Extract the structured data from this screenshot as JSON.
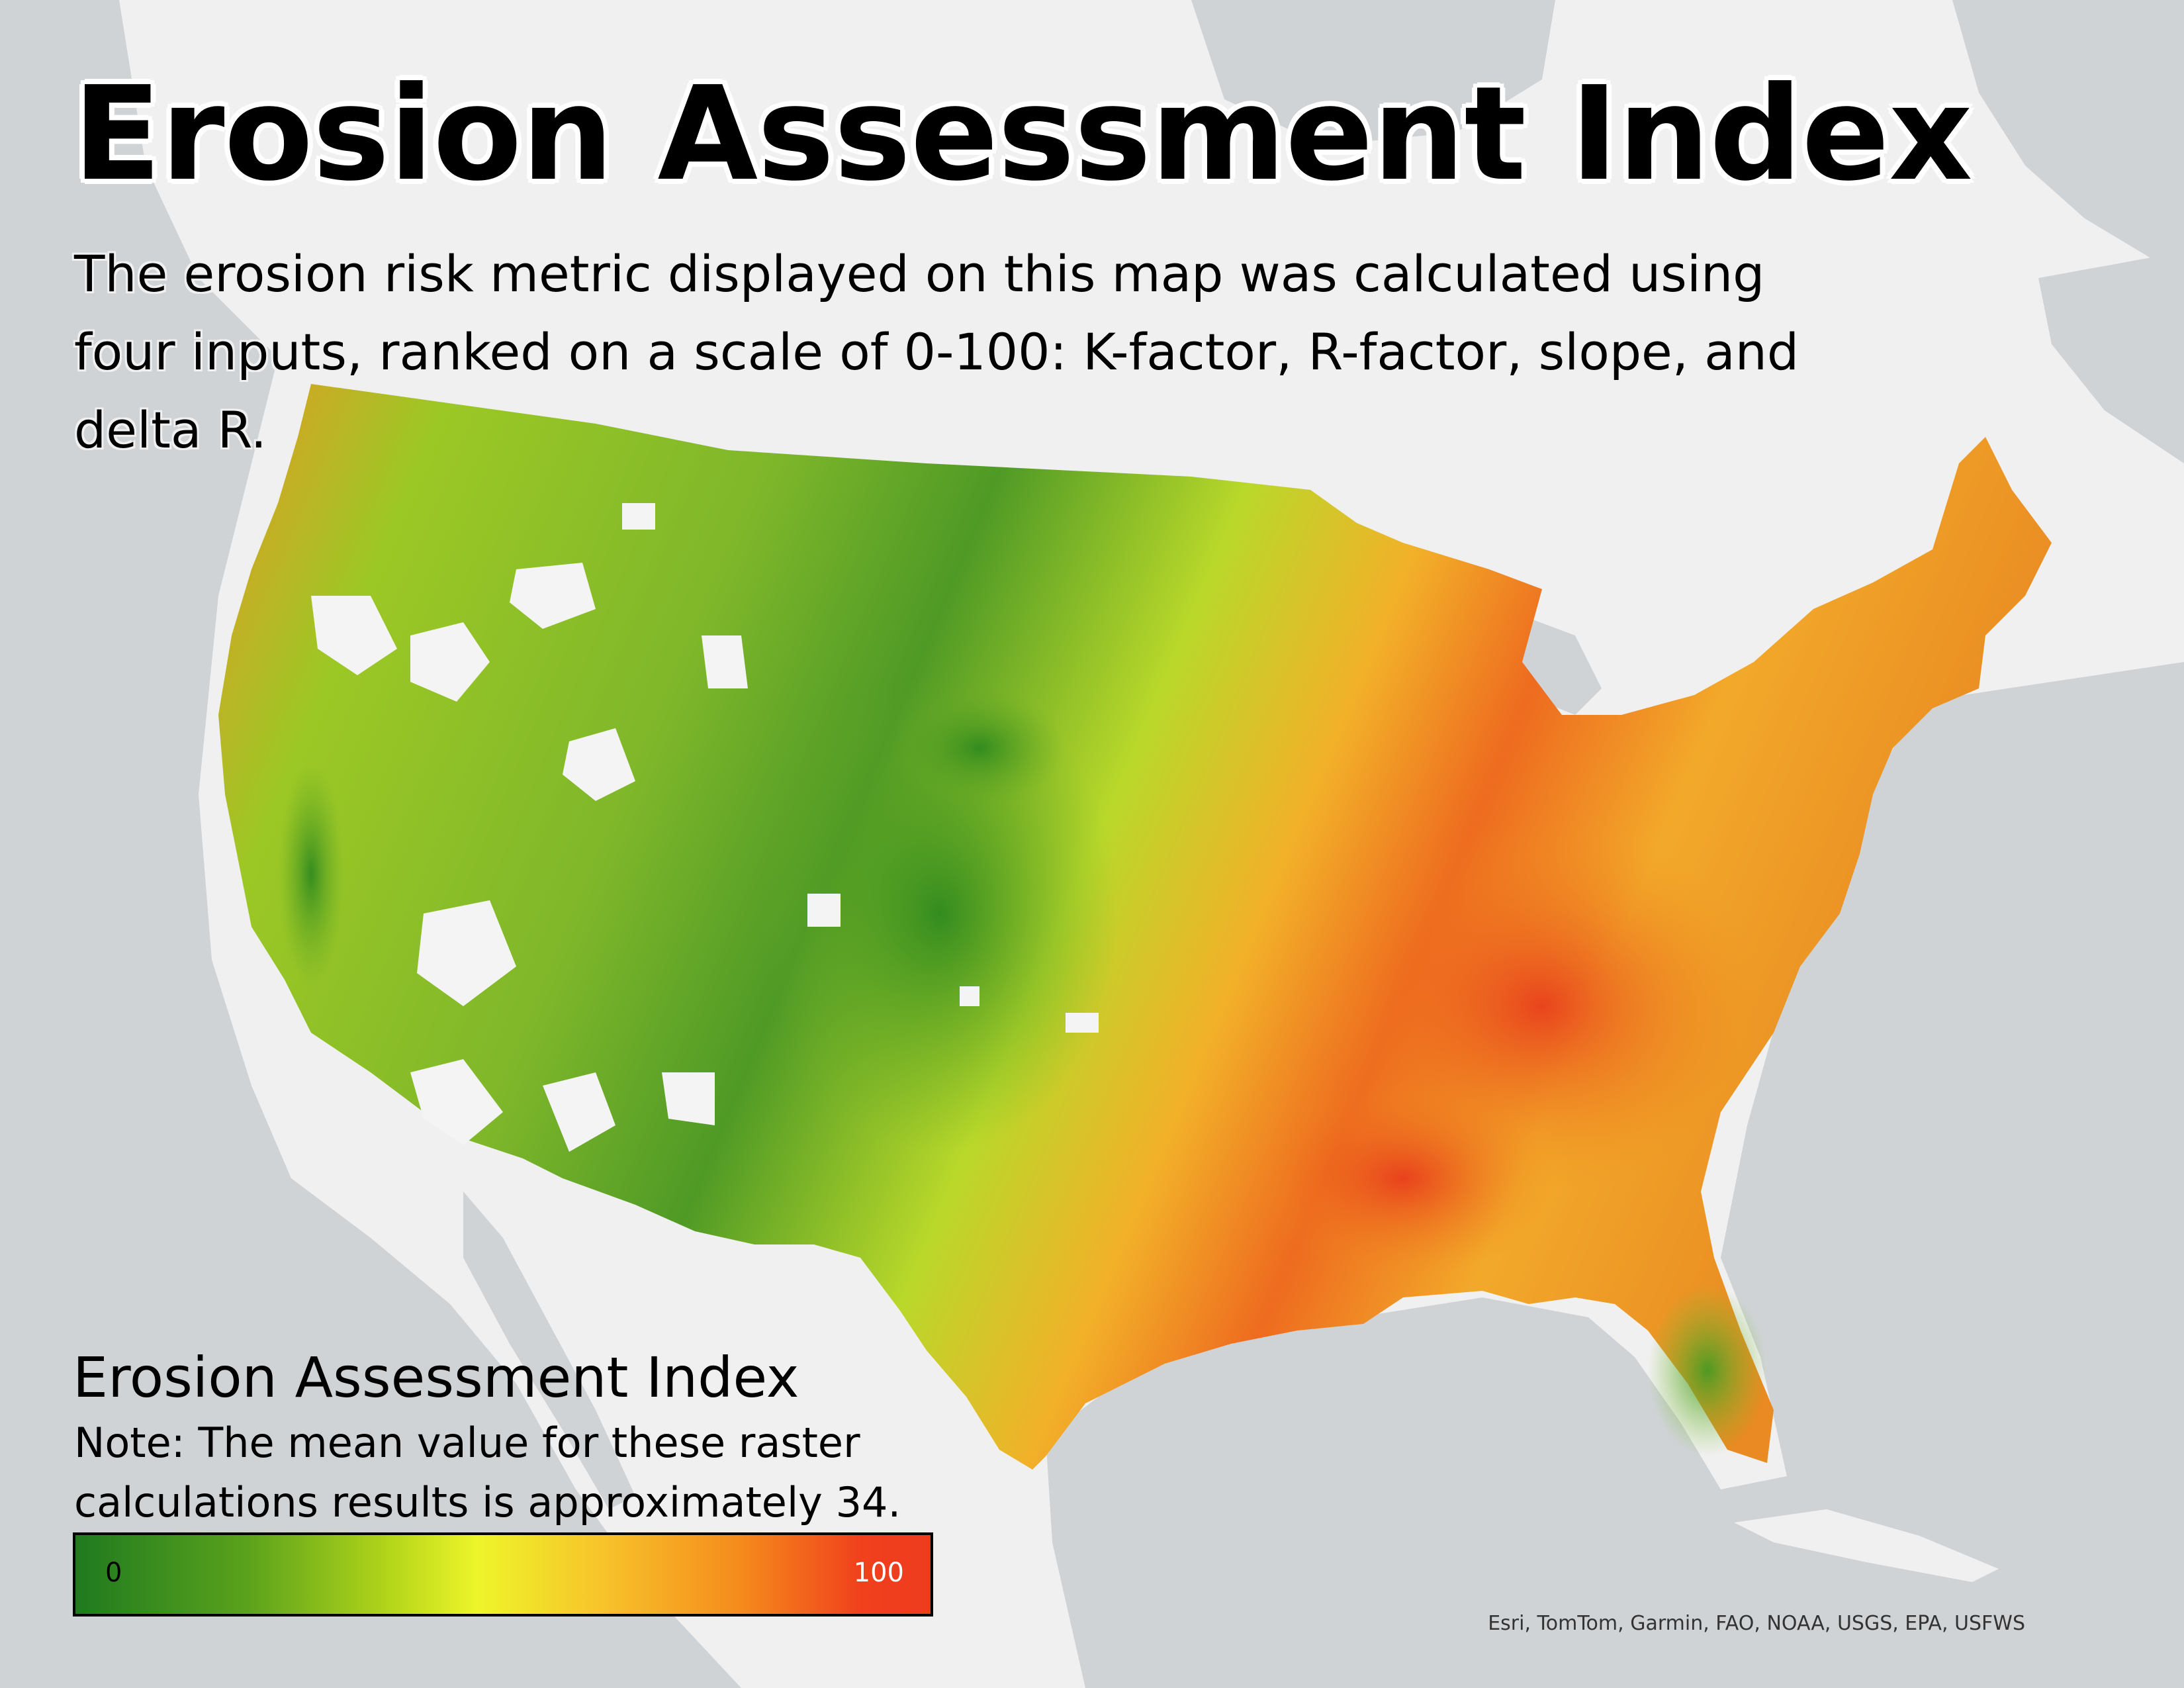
{
  "map": {
    "title": "Erosion Assessment Index",
    "subtitle": "The erosion risk metric displayed on this map was calculated using four inputs, ranked on a scale of 0-100: K-factor, R-factor, slope, and delta R.",
    "basemap": {
      "ocean_color": "#cfd3d6",
      "land_color": "#f0f0f0"
    }
  },
  "legend": {
    "title": "Erosion Assessment Index",
    "note": "Note: The mean value for these raster calculations results is approximately 34.",
    "min_label": "0",
    "max_label": "100",
    "colors": [
      "#1f7a1f",
      "#5aa21c",
      "#b5d61a",
      "#eef52a",
      "#f7c22a",
      "#f58a1c",
      "#ee3b1f"
    ]
  },
  "credits": "Esri, TomTom, Garmin, FAO, NOAA, USGS, EPA, USFWS"
}
